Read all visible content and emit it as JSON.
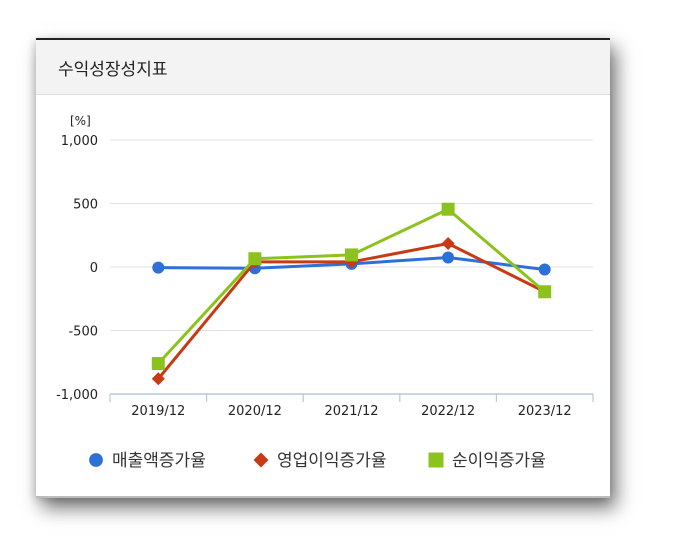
{
  "title": "수익성장성지표",
  "chart_data": {
    "type": "line",
    "unit_label": "[%]",
    "categories": [
      "2019/12",
      "2020/12",
      "2021/12",
      "2022/12",
      "2023/12"
    ],
    "ylim": [
      -1000,
      1000
    ],
    "yticks": [
      "1,000",
      "500",
      "0",
      "-500",
      "-1,000"
    ],
    "ytick_values": [
      1000,
      500,
      0,
      -500,
      -1000
    ],
    "grid": true,
    "legend_position": "bottom",
    "series": [
      {
        "name": "매출액증가율",
        "color": "#2e6fd8",
        "marker": "circle",
        "values": [
          -5,
          -10,
          25,
          75,
          -20
        ]
      },
      {
        "name": "영업이익증가율",
        "color": "#c83a14",
        "marker": "diamond",
        "values": [
          -880,
          40,
          40,
          185,
          -195
        ]
      },
      {
        "name": "순이익증가율",
        "color": "#8cc21c",
        "marker": "square",
        "values": [
          -760,
          65,
          95,
          455,
          -195
        ]
      }
    ]
  }
}
